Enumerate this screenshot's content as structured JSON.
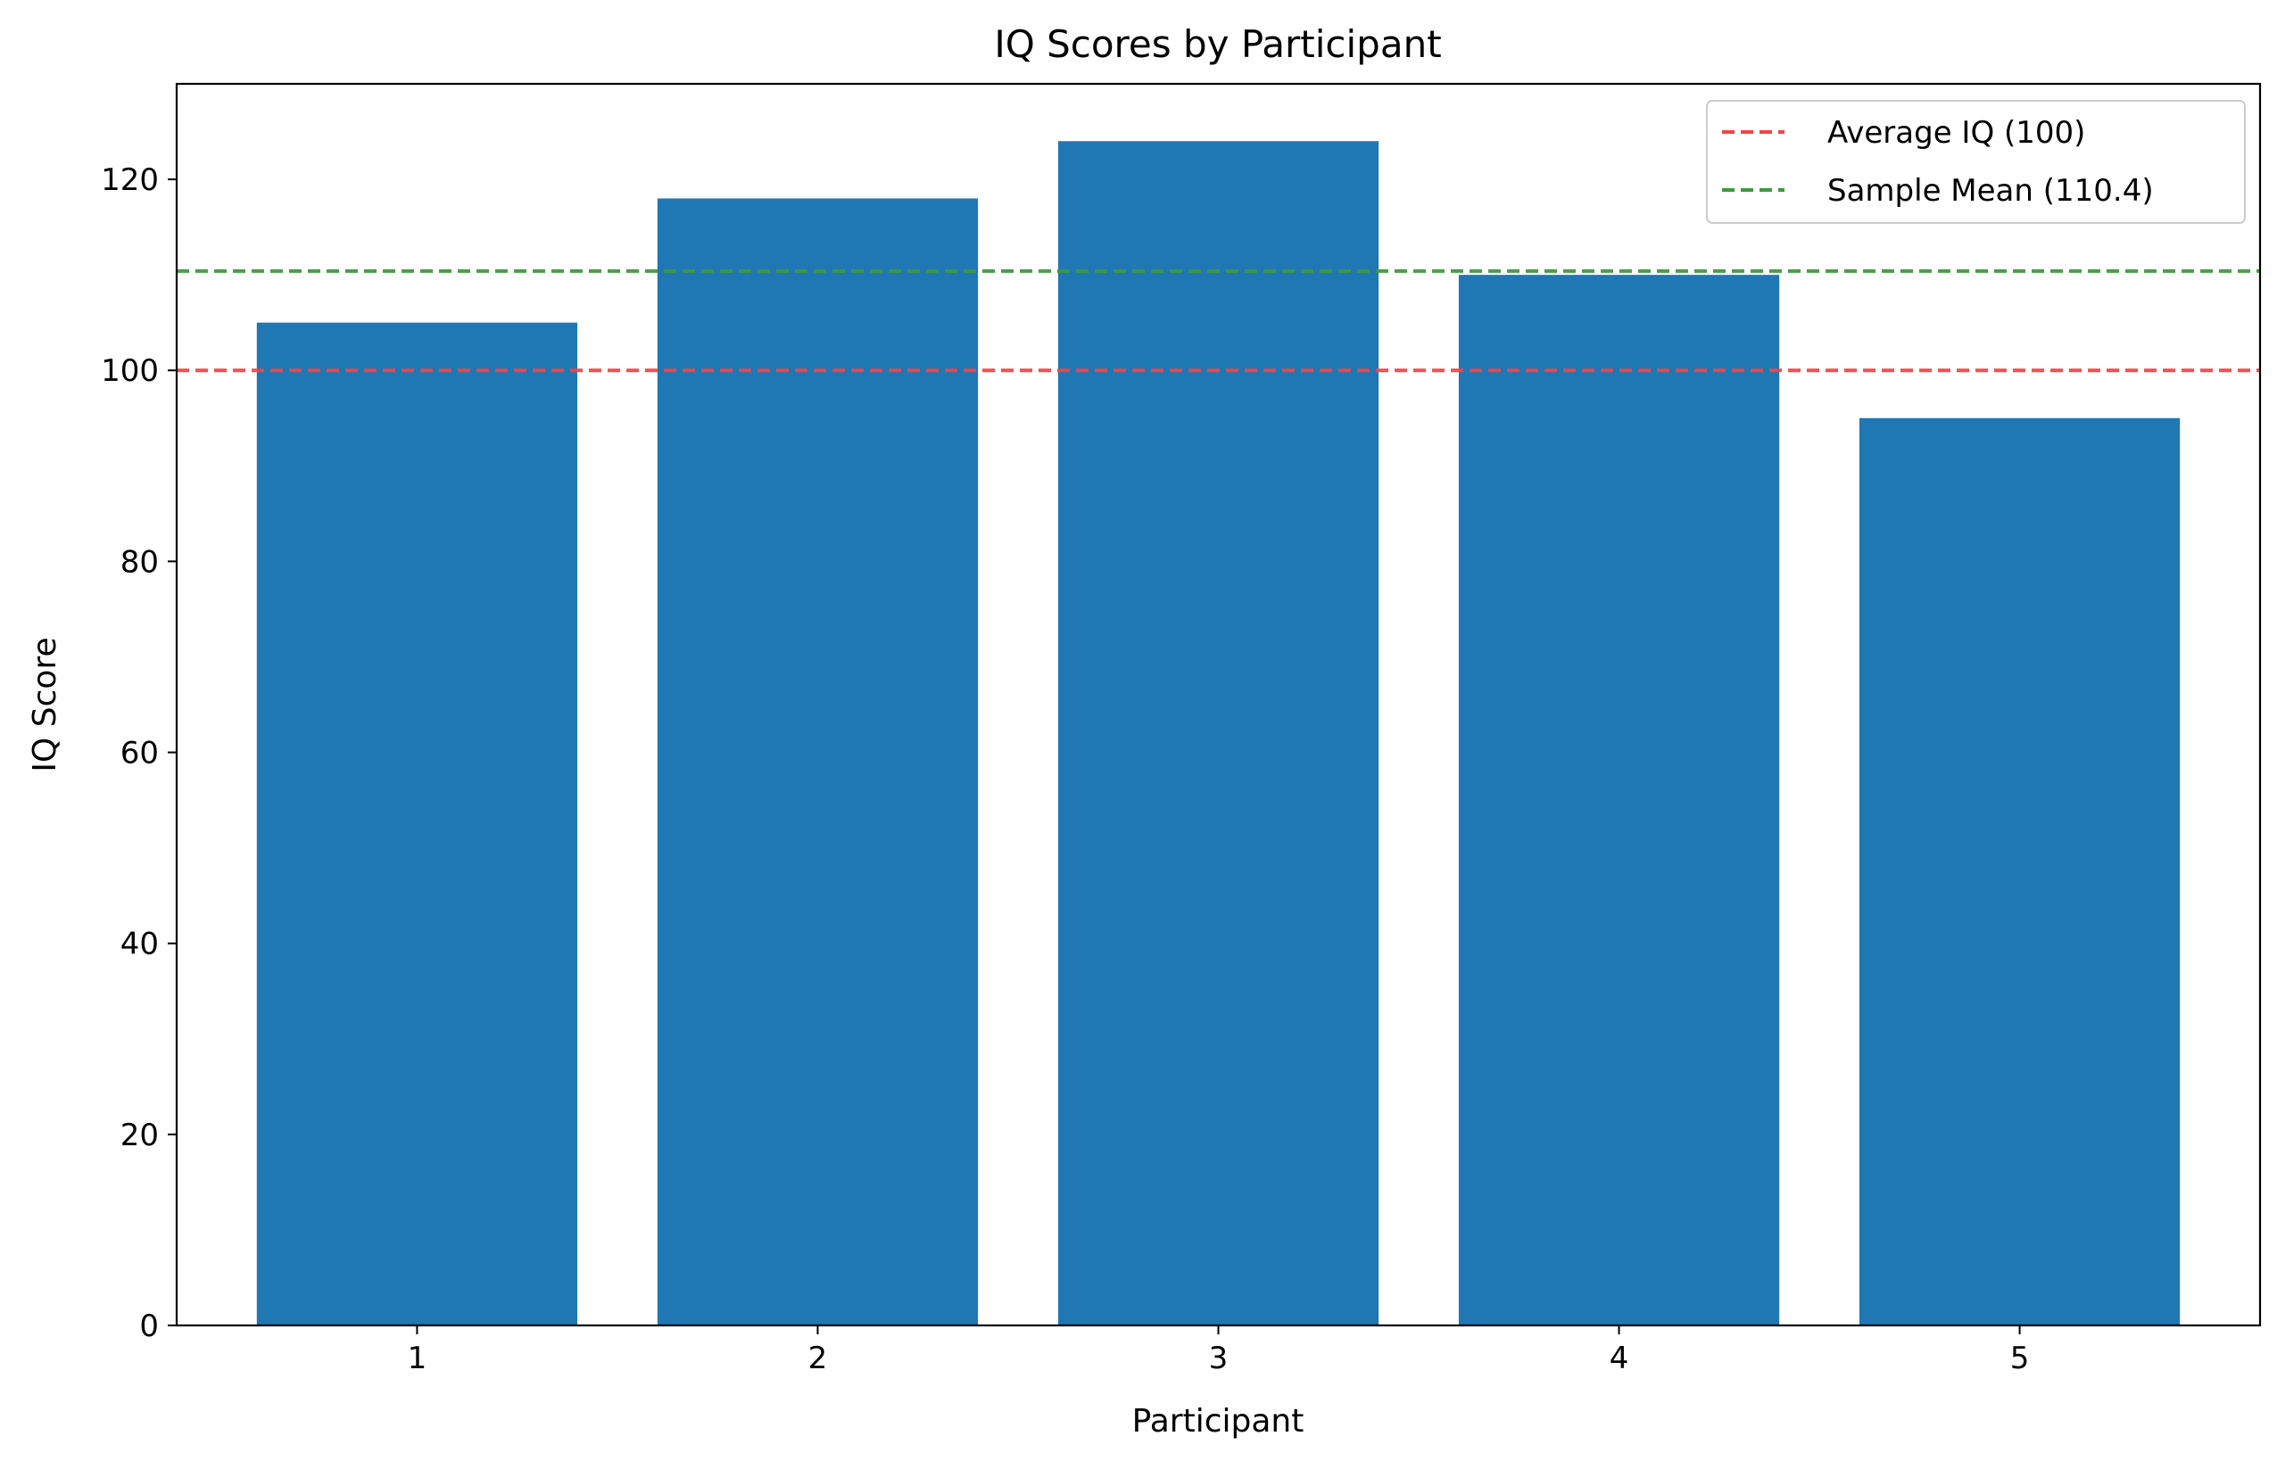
{
  "chart_data": {
    "type": "bar",
    "title": "IQ Scores by Participant",
    "xlabel": "Participant",
    "ylabel": "IQ Score",
    "categories": [
      "1",
      "2",
      "3",
      "4",
      "5"
    ],
    "values": [
      105,
      118,
      124,
      110,
      95
    ],
    "ylim": [
      0,
      130
    ],
    "yticks": [
      0,
      20,
      40,
      60,
      80,
      100,
      120
    ],
    "bar_color": "#1f77b4",
    "grid": false,
    "legend_position": "top-right",
    "reference_lines": [
      {
        "label": "Average IQ (100)",
        "value": 100,
        "color": "#f44444",
        "style": "dashed"
      },
      {
        "label": "Sample Mean (110.4)",
        "value": 110.4,
        "color": "#3d9a3d",
        "style": "dashed"
      }
    ]
  }
}
